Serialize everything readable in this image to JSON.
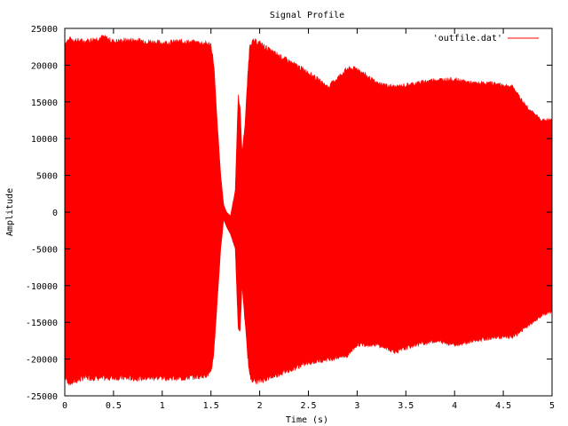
{
  "chart_data": {
    "type": "area",
    "title": "Signal Profile",
    "xlabel": "Time (s)",
    "ylabel": "Amplitude",
    "xlim": [
      0,
      5
    ],
    "ylim": [
      -25000,
      25000
    ],
    "xticks": [
      0,
      0.5,
      1,
      1.5,
      2,
      2.5,
      3,
      3.5,
      4,
      4.5,
      5
    ],
    "xtick_labels": [
      "0",
      "0.5",
      "1",
      "1.5",
      "2",
      "2.5",
      "3",
      "3.5",
      "4",
      "4.5",
      "5"
    ],
    "yticks": [
      -25000,
      -20000,
      -15000,
      -10000,
      -5000,
      0,
      5000,
      10000,
      15000,
      20000,
      25000
    ],
    "ytick_labels": [
      "-25000",
      "-20000",
      "-15000",
      "-10000",
      "-5000",
      "0",
      "5000",
      "10000",
      "15000",
      "20000",
      "25000"
    ],
    "grid": false,
    "legend_position": "top-right",
    "series": [
      {
        "name": "'outfile.dat'",
        "color": "#ff0000",
        "envelope": {
          "x": [
            0.0,
            0.05,
            0.2,
            0.4,
            0.5,
            0.7,
            1.0,
            1.2,
            1.4,
            1.5,
            1.53,
            1.56,
            1.6,
            1.63,
            1.66,
            1.7,
            1.75,
            1.78,
            1.8,
            1.82,
            1.85,
            1.88,
            1.9,
            1.95,
            2.0,
            2.1,
            2.3,
            2.5,
            2.7,
            2.9,
            3.0,
            3.2,
            3.4,
            3.6,
            3.8,
            4.0,
            4.2,
            4.4,
            4.6,
            4.7,
            4.8,
            4.9,
            5.0
          ],
          "upper": [
            23000,
            23500,
            23200,
            23800,
            23200,
            23400,
            23000,
            23200,
            23000,
            22800,
            20000,
            13000,
            5000,
            1000,
            0,
            -500,
            3000,
            16000,
            14000,
            8000,
            12000,
            19000,
            23000,
            23200,
            23000,
            22000,
            20500,
            19000,
            17000,
            19500,
            19500,
            17500,
            17000,
            17500,
            18000,
            18000,
            17500,
            17500,
            17000,
            15000,
            13500,
            12500,
            12500
          ],
          "lower": [
            -22500,
            -23300,
            -22500,
            -22600,
            -22500,
            -22600,
            -22500,
            -22600,
            -22300,
            -22000,
            -19000,
            -13000,
            -5000,
            -1000,
            -2000,
            -3000,
            -5000,
            -16000,
            -16000,
            -10000,
            -15000,
            -20000,
            -22500,
            -23000,
            -23000,
            -22500,
            -21500,
            -20500,
            -20000,
            -19500,
            -18000,
            -18000,
            -19000,
            -18000,
            -17500,
            -18000,
            -17500,
            -17000,
            -17000,
            -16000,
            -15000,
            -14000,
            -13500
          ]
        }
      }
    ]
  }
}
